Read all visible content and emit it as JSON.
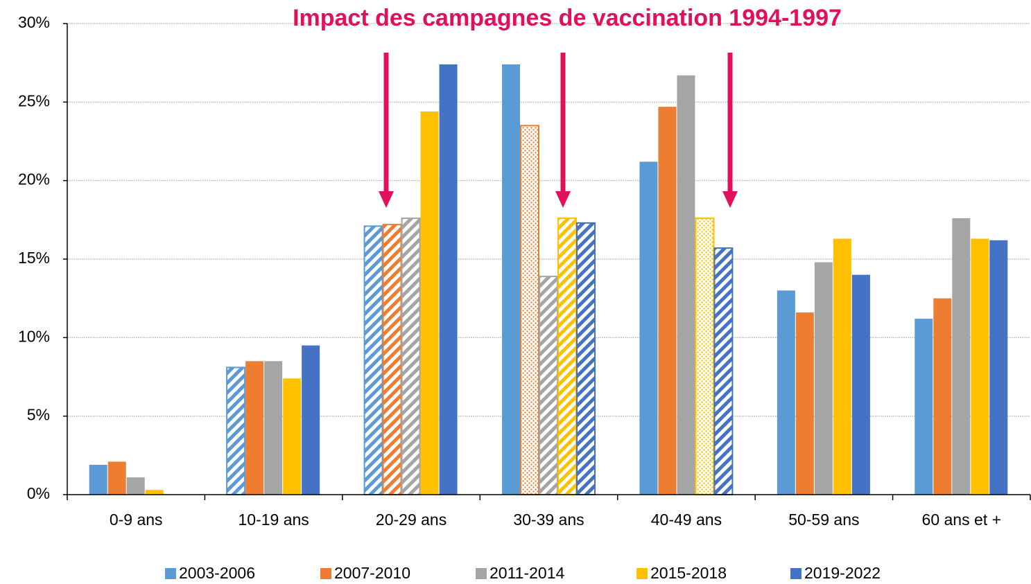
{
  "chart_data": {
    "type": "bar",
    "title": "Impact des campagnes de vaccination 1994-1997",
    "title_color": "#e0105a",
    "categories": [
      "0-9 ans",
      "10-19 ans",
      "20-29 ans",
      "30-39 ans",
      "40-49 ans",
      "50-59 ans",
      "60 ans et +"
    ],
    "series": [
      {
        "name": "2003-2006",
        "color": "#5b9bd5",
        "values": [
          1.9,
          8.1,
          17.1,
          27.4,
          21.2,
          13.0,
          11.2
        ],
        "styles": [
          "solid",
          "hatch",
          "hatch",
          "solid",
          "solid",
          "solid",
          "solid"
        ]
      },
      {
        "name": "2007-2010",
        "color": "#ed7d31",
        "values": [
          2.1,
          8.5,
          17.2,
          23.5,
          24.7,
          11.6,
          12.5
        ],
        "styles": [
          "solid",
          "solid",
          "hatch",
          "dots",
          "solid",
          "solid",
          "solid"
        ]
      },
      {
        "name": "2011-2014",
        "color": "#a5a5a5",
        "values": [
          1.1,
          8.5,
          17.6,
          13.9,
          26.7,
          14.8,
          17.6
        ],
        "styles": [
          "solid",
          "solid",
          "hatch",
          "hatch",
          "solid",
          "solid",
          "solid"
        ]
      },
      {
        "name": "2015-2018",
        "color": "#ffc000",
        "values": [
          0.3,
          7.4,
          24.4,
          17.6,
          17.6,
          16.3,
          16.3
        ],
        "styles": [
          "solid",
          "solid",
          "solid",
          "hatch",
          "dots",
          "solid",
          "solid"
        ]
      },
      {
        "name": "2019-2022",
        "color": "#4472c4",
        "values": [
          0,
          9.5,
          27.4,
          17.3,
          15.7,
          14.0,
          16.2
        ],
        "styles": [
          "solid",
          "solid",
          "solid",
          "hatch",
          "hatch",
          "solid",
          "solid"
        ]
      }
    ],
    "ylim": [
      0,
      30
    ],
    "yticks": [
      {
        "value": 0,
        "label": "0%"
      },
      {
        "value": 5,
        "label": "5%"
      },
      {
        "value": 10,
        "label": "10%"
      },
      {
        "value": 15,
        "label": "15%"
      },
      {
        "value": 20,
        "label": "20%"
      },
      {
        "value": 25,
        "label": "25%"
      },
      {
        "value": 30,
        "label": "30%"
      }
    ],
    "grid": true,
    "legend": "bottom"
  }
}
